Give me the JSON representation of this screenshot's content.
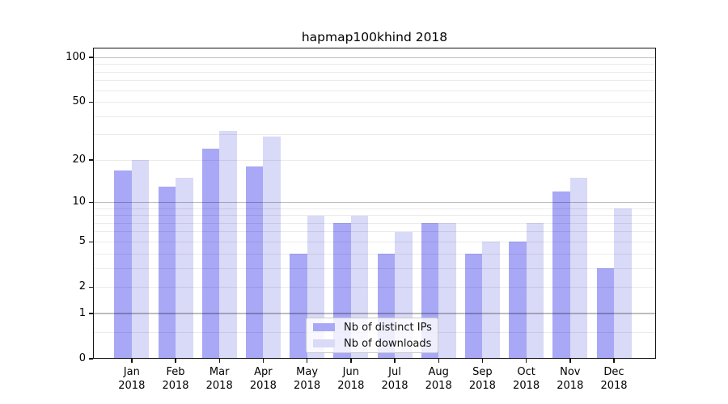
{
  "chart_data": {
    "type": "bar",
    "title": "hapmap100khind 2018",
    "categories": [
      "Jan",
      "Feb",
      "Mar",
      "Apr",
      "May",
      "Jun",
      "Jul",
      "Aug",
      "Sep",
      "Oct",
      "Nov",
      "Dec"
    ],
    "x_sublabel": "2018",
    "series": [
      {
        "name": "Nb of distinct IPs",
        "color": "#a8a8f6",
        "values": [
          17,
          13,
          24,
          18,
          4,
          7,
          4,
          7,
          4,
          5,
          12,
          3
        ]
      },
      {
        "name": "Nb of downloads",
        "color": "#d9d9f8",
        "values": [
          20,
          15,
          32,
          29,
          8,
          8,
          6,
          7,
          5,
          7,
          15,
          9
        ]
      }
    ],
    "yscale": "log10(1+v)",
    "ylim": [
      0,
      116.5
    ],
    "ytick_values": [
      100,
      50,
      20,
      10,
      5,
      2,
      1,
      0
    ],
    "grid": {
      "major_values": [
        1,
        10,
        100
      ],
      "minor_values": [
        0.5,
        2,
        3,
        4,
        5,
        6,
        7,
        8,
        9,
        20,
        30,
        40,
        50,
        60,
        70,
        80,
        90
      ],
      "major_color": "#bdbdbd",
      "minor_color": "#ebebeb"
    },
    "legend_position": "inside lower-center",
    "background": "#ffffff"
  }
}
